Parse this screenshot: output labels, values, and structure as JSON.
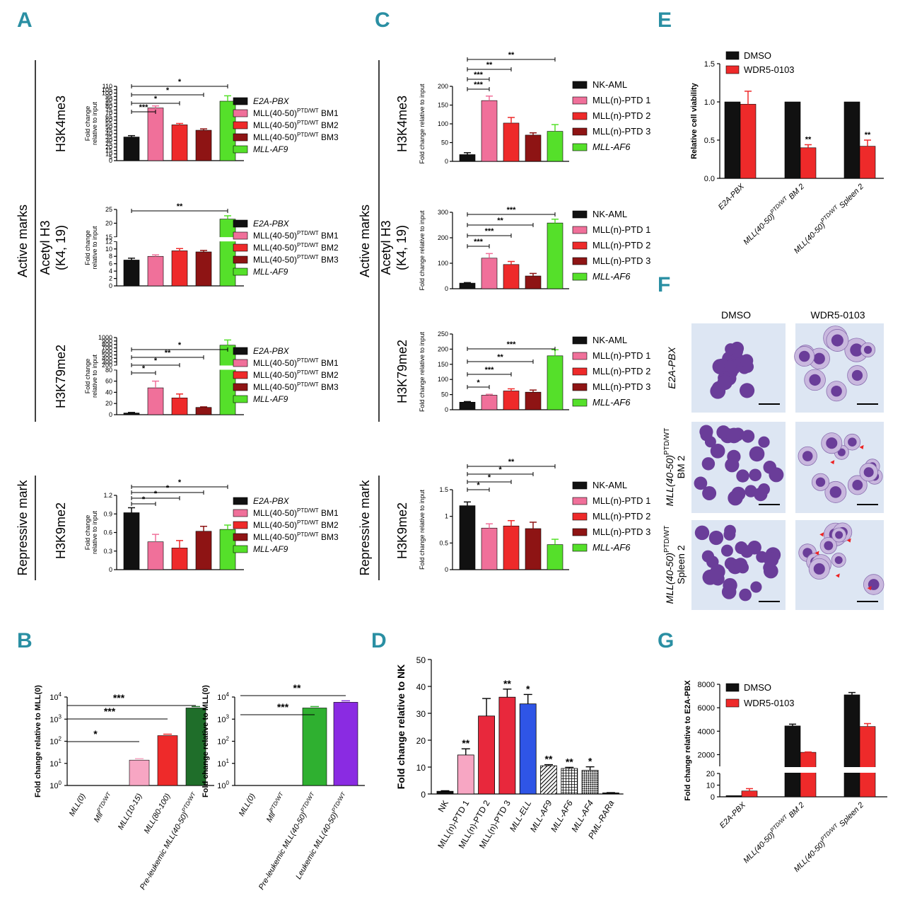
{
  "panel_labels": [
    "A",
    "B",
    "C",
    "D",
    "E",
    "F",
    "G"
  ],
  "colors": {
    "black": "#111111",
    "pink": "#f0709a",
    "red": "#ee2a2a",
    "darkred": "#8e1414",
    "green": "#55e02a",
    "lightpink": "#f7a6c3",
    "salmon": "#f06a6a",
    "darkgreen": "#1f6e2a",
    "midgreen": "#2fb030",
    "purple": "#8a2be2",
    "blue": "#2f55e6",
    "crimson": "#e8283c",
    "label_teal": "#2a8fa3"
  },
  "group_labels": {
    "active_marks": "Active marks",
    "repressive_mark": "Repressive mark",
    "h3k4me3": "H3K4me3",
    "acetyl_line1": "Acetyl H3",
    "acetyl_line2": "(K4, 19)",
    "h3k79me2": "H3K79me2",
    "h3k9me2": "H3K9me2"
  },
  "legend_A": [
    "E2A-PBX",
    "MLL(40-50)PTD/WT BM1",
    "MLL(40-50)PTD/WT BM2",
    "MLL(40-50)PTD/WT BM3",
    "MLL-AF9"
  ],
  "legend_C": [
    "NK-AML",
    "MLL(n)-PTD 1",
    "MLL(n)-PTD 2",
    "MLL(n)-PTD 3",
    "MLL-AF6"
  ],
  "panel_F": {
    "col_headers": [
      "DMSO",
      "WDR5-0103"
    ],
    "row_labels": [
      "E2A-PBX",
      "MLL(40-50)PTD/WT BM 2",
      "MLL(40-50)PTD/WT Spleen 2"
    ]
  },
  "chart_data": [
    {
      "panel": "A",
      "subpanel": "H3K4me3",
      "type": "bar",
      "ylabel": "Fold change relative to input",
      "ylim": [
        0,
        110
      ],
      "yticks": [
        0,
        5,
        10,
        15,
        20,
        25,
        30,
        35,
        40,
        45,
        50,
        55,
        60,
        65,
        70,
        75,
        80,
        85,
        90,
        95,
        100,
        105,
        110
      ],
      "series": [
        "E2A-PBX",
        "MLL(40-50)PTD/WT BM1",
        "MLL(40-50)PTD/WT BM2",
        "MLL(40-50)PTD/WT BM3",
        "MLL-AF9"
      ],
      "values": [
        35,
        78,
        53,
        45,
        88
      ],
      "errors": [
        2,
        3,
        2,
        2,
        8
      ],
      "significance": [
        "***",
        "*",
        "*",
        "*"
      ]
    },
    {
      "panel": "A",
      "subpanel": "Acetyl H3 (K4, 19)",
      "type": "bar",
      "ylabel": "Fold change relative to input",
      "ylim": [
        0,
        25
      ],
      "axis_break": [
        12,
        15
      ],
      "yticks": [
        0,
        2,
        4,
        6,
        8,
        10,
        12,
        15,
        20,
        25
      ],
      "series": [
        "E2A-PBX",
        "MLL(40-50)PTD/WT BM1",
        "MLL(40-50)PTD/WT BM2",
        "MLL(40-50)PTD/WT BM3",
        "MLL-AF9"
      ],
      "values": [
        7,
        8,
        9.5,
        9.2,
        21.5
      ],
      "errors": [
        0.5,
        0.4,
        0.6,
        0.4,
        1.2
      ],
      "significance": [
        "**"
      ]
    },
    {
      "panel": "A",
      "subpanel": "H3K79me2",
      "type": "bar",
      "ylabel": "Fold change relative to input",
      "ylim": [
        0,
        1000
      ],
      "axis_break": [
        80,
        200
      ],
      "yticks": [
        0,
        20,
        40,
        60,
        80,
        200,
        300,
        400,
        500,
        600,
        700,
        800,
        900,
        1000
      ],
      "series": [
        "E2A-PBX",
        "MLL(40-50)PTD/WT BM1",
        "MLL(40-50)PTD/WT BM2",
        "MLL(40-50)PTD/WT BM3",
        "MLL-AF9"
      ],
      "values": [
        3,
        48,
        30,
        13,
        780
      ],
      "errors": [
        1,
        12,
        7,
        1,
        150
      ],
      "significance": [
        "*",
        "*",
        "**",
        "*"
      ]
    },
    {
      "panel": "A",
      "subpanel": "H3K9me2",
      "type": "bar",
      "ylabel": "Fold change relative to input",
      "ylim": [
        0,
        1.2
      ],
      "yticks": [
        0.0,
        0.3,
        0.6,
        0.9,
        1.2
      ],
      "series": [
        "E2A-PBX",
        "MLL(40-50)PTD/WT BM1",
        "MLL(40-50)PTD/WT BM2",
        "MLL(40-50)PTD/WT BM3",
        "MLL-AF9"
      ],
      "values": [
        0.92,
        0.45,
        0.35,
        0.62,
        0.65
      ],
      "errors": [
        0.08,
        0.12,
        0.12,
        0.08,
        0.07
      ],
      "significance": [
        "*",
        "*",
        "*",
        "*"
      ]
    },
    {
      "panel": "C",
      "subpanel": "H3K4me3",
      "type": "bar",
      "ylabel": "Fold change relative to input",
      "ylim": [
        0,
        200
      ],
      "yticks": [
        0,
        50,
        100,
        150,
        200
      ],
      "series": [
        "NK-AML",
        "MLL(n)-PTD 1",
        "MLL(n)-PTD 2",
        "MLL(n)-PTD 3",
        "MLL-AF6"
      ],
      "values": [
        18,
        162,
        102,
        70,
        80
      ],
      "errors": [
        5,
        12,
        15,
        6,
        18
      ],
      "significance": [
        "***",
        "***",
        "**",
        "**"
      ]
    },
    {
      "panel": "C",
      "subpanel": "Acetyl H3 (K4, 19)",
      "type": "bar",
      "ylabel": "Fold change relative to input",
      "ylim": [
        0,
        300
      ],
      "yticks": [
        0,
        100,
        200,
        300
      ],
      "series": [
        "NK-AML",
        "MLL(n)-PTD 1",
        "MLL(n)-PTD 2",
        "MLL(n)-PTD 3",
        "MLL-AF6"
      ],
      "values": [
        22,
        120,
        95,
        50,
        258
      ],
      "errors": [
        2,
        18,
        12,
        10,
        15
      ],
      "significance": [
        "***",
        "***",
        "**",
        "***"
      ]
    },
    {
      "panel": "C",
      "subpanel": "H3K79me2",
      "type": "bar",
      "ylabel": "Fold change relative to input",
      "ylim": [
        0,
        250
      ],
      "yticks": [
        0,
        50,
        100,
        150,
        200,
        250
      ],
      "series": [
        "NK-AML",
        "MLL(n)-PTD 1",
        "MLL(n)-PTD 2",
        "MLL(n)-PTD 3",
        "MLL-AF6"
      ],
      "values": [
        25,
        48,
        62,
        58,
        178
      ],
      "errors": [
        2,
        3,
        7,
        7,
        20
      ],
      "significance": [
        "*",
        "***",
        "**",
        "***"
      ]
    },
    {
      "panel": "C",
      "subpanel": "H3K9me2",
      "type": "bar",
      "ylabel": "Fold change relative to input",
      "ylim": [
        0,
        1.5
      ],
      "yticks": [
        0.0,
        0.5,
        1.0,
        1.5
      ],
      "series": [
        "NK-AML",
        "MLL(n)-PTD 1",
        "MLL(n)-PTD 2",
        "MLL(n)-PTD 3",
        "MLL-AF6"
      ],
      "values": [
        1.2,
        0.78,
        0.82,
        0.77,
        0.47
      ],
      "errors": [
        0.07,
        0.08,
        0.1,
        0.12,
        0.1
      ],
      "significance": [
        "*",
        "*",
        "*",
        "**"
      ]
    },
    {
      "panel": "B",
      "subpanel": "left",
      "type": "bar",
      "yscale": "log",
      "ylabel": "Fold change relative to MLL(0)",
      "yticks": [
        "10^0",
        "10^1",
        "10^2",
        "10^3",
        "10^4"
      ],
      "categories": [
        "MLL(0)",
        "MllPTD/WT",
        "MLL(10-15)",
        "MLL(80-100)",
        "Pre-leukemic MLL(40-50)PTD/WT"
      ],
      "values": [
        1,
        1,
        14,
        180,
        3200
      ],
      "significance": [
        "*",
        "***",
        "***"
      ]
    },
    {
      "panel": "B",
      "subpanel": "right",
      "type": "bar",
      "yscale": "log",
      "ylabel": "Fold change relative to MLL(0)",
      "yticks": [
        "10^0",
        "10^1",
        "10^2",
        "10^3",
        "10^4"
      ],
      "categories": [
        "MLL(0)",
        "MllPTD/WT",
        "Pre-leukemic MLL(40-50)PTD/WT",
        "Leukemic MLL(40-50)PTD/WT"
      ],
      "values": [
        1,
        1,
        3200,
        5800
      ],
      "significance": [
        "***",
        "**"
      ]
    },
    {
      "panel": "D",
      "type": "bar",
      "ylabel": "Fold change relative to NK",
      "ylim": [
        0,
        50
      ],
      "yticks": [
        0,
        10,
        20,
        30,
        40,
        50
      ],
      "categories": [
        "NK",
        "MLL(n)-PTD 1",
        "MLL(n)-PTD 2",
        "MLL(n)-PTD 3",
        "MLL-ELL",
        "MLL-AF9",
        "MLL-AF6",
        "MLL-AF4",
        "PML-RARa"
      ],
      "values": [
        1,
        14.5,
        29,
        36,
        33.5,
        10.5,
        9.5,
        8.8,
        0.4
      ],
      "errors": [
        0.2,
        2.3,
        6.5,
        3,
        3.5,
        0.4,
        0.4,
        1.3,
        0.1
      ],
      "significance": [
        "",
        "**",
        "",
        "**",
        "*",
        "**",
        "**",
        "*",
        ""
      ]
    },
    {
      "panel": "E",
      "type": "bar",
      "ylabel": "Relative cell viability",
      "ylim": [
        0,
        1.5
      ],
      "yticks": [
        0.0,
        0.5,
        1.0,
        1.5
      ],
      "categories": [
        "E2A-PBX",
        "MLL(40-50)PTD/WT BM 2",
        "MLL(40-50)PTD/WT Spleen 2"
      ],
      "series": [
        {
          "name": "DMSO",
          "values": [
            1.0,
            1.0,
            1.0
          ],
          "errors": [
            0,
            0,
            0
          ]
        },
        {
          "name": "WDR5-0103",
          "values": [
            0.97,
            0.4,
            0.42
          ],
          "errors": [
            0.17,
            0.04,
            0.08
          ]
        }
      ],
      "significance": [
        "",
        "**",
        "**"
      ]
    },
    {
      "panel": "G",
      "type": "bar",
      "ylabel": "Fold change relative to E2A-PBX",
      "yticks": [
        0,
        10,
        20,
        2000,
        4000,
        6000,
        8000
      ],
      "axis_break": [
        20,
        1000
      ],
      "categories": [
        "E2A-PBX",
        "MLL(40-50)PTD/WT BM 2",
        "MLL(40-50)PTD/WT Spleen 2"
      ],
      "series": [
        {
          "name": "DMSO",
          "values": [
            1,
            4450,
            7100
          ],
          "errors": [
            0,
            150,
            200
          ]
        },
        {
          "name": "WDR5-0103",
          "values": [
            5,
            2200,
            4400
          ],
          "errors": [
            2,
            30,
            250
          ]
        }
      ]
    }
  ]
}
